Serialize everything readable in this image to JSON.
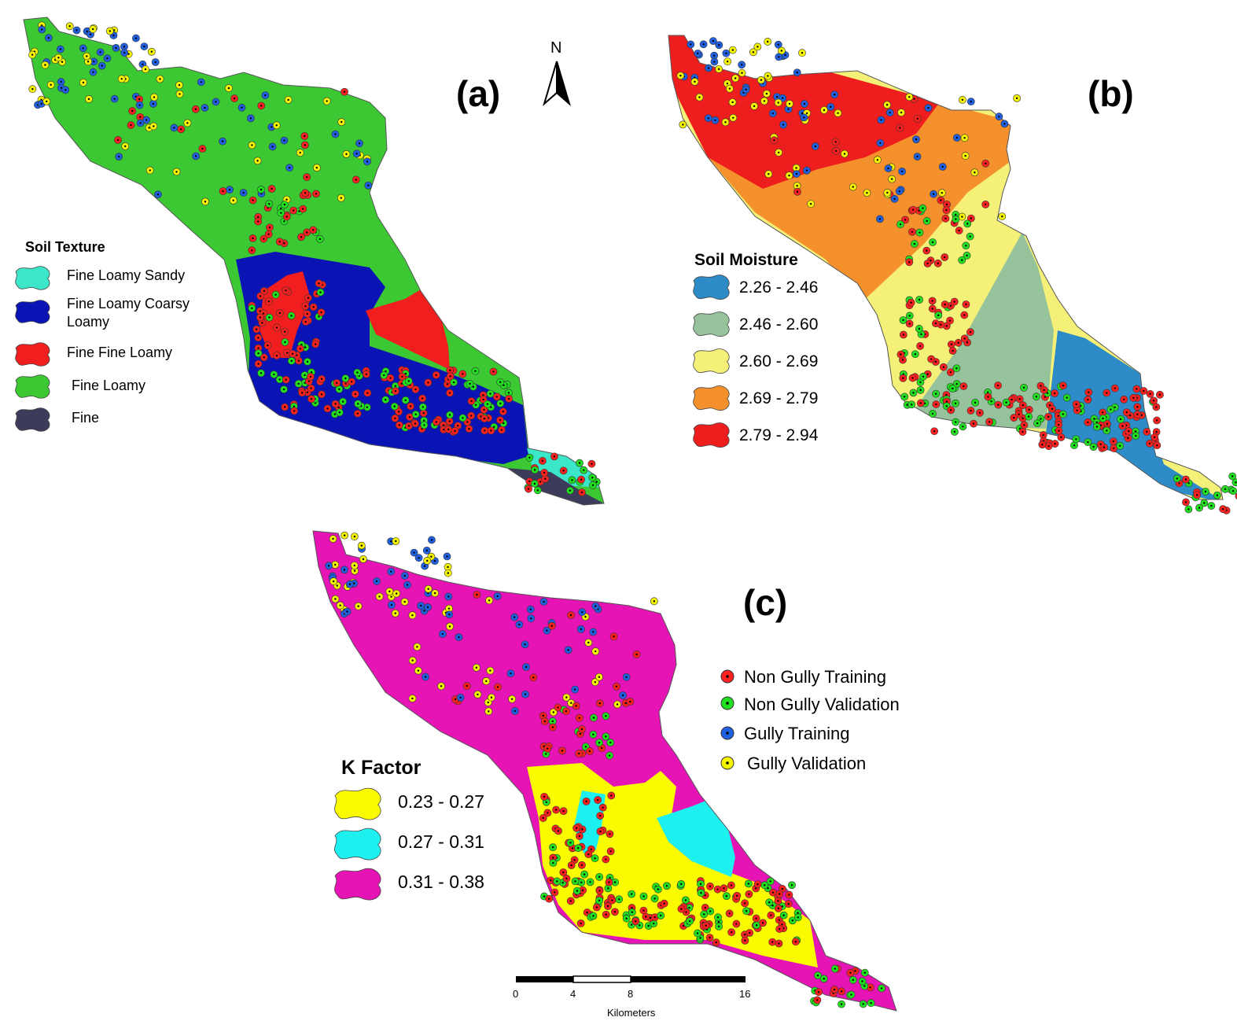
{
  "panels": [
    {
      "id": "a",
      "label": "(a)"
    },
    {
      "id": "b",
      "label": "(b)"
    },
    {
      "id": "c",
      "label": "(c)"
    }
  ],
  "north_arrow": {
    "letter": "N",
    "icon": "north-arrow-icon"
  },
  "soil_texture_legend": {
    "title": "Soil Texture",
    "items": [
      {
        "label": "Fine Loamy Sandy",
        "color": "#3ce6c8"
      },
      {
        "label": "Fine Loamy Coarsy Loamy",
        "line1": "Fine Loamy Coarsy",
        "line2": "Loamy",
        "color": "#0a14b4"
      },
      {
        "label": "Fine Fine Loamy",
        "color": "#f01e1e"
      },
      {
        "label": "Fine Loamy",
        "color": "#3cc832"
      },
      {
        "label": "Fine",
        "color": "#3c3c5a"
      }
    ]
  },
  "soil_moisture_legend": {
    "title": "Soil Moisture",
    "items": [
      {
        "label": "2.26 - 2.46",
        "color": "#2d8cc8"
      },
      {
        "label": "2.46 - 2.60",
        "color": "#96c39b"
      },
      {
        "label": "2.60 - 2.69",
        "color": "#f5f078"
      },
      {
        "label": "2.69 - 2.79",
        "color": "#f5912d"
      },
      {
        "label": "2.79 - 2.94",
        "color": "#ee1e1e"
      }
    ]
  },
  "k_factor_legend": {
    "title": "K Factor",
    "items": [
      {
        "label": "0.23 - 0.27",
        "color": "#fafa00"
      },
      {
        "label": "0.27 - 0.31",
        "color": "#1ef0f0"
      },
      {
        "label": "0.31 - 0.38",
        "color": "#e614b4"
      }
    ]
  },
  "points_legend": {
    "items": [
      {
        "label": "Non Gully Training",
        "color": "#ff2020"
      },
      {
        "label": "Non Gully Validation",
        "color": "#20e020"
      },
      {
        "label": "Gully Training",
        "color": "#2060e0"
      },
      {
        "label": "Gully Validation",
        "color": "#f5f500"
      }
    ]
  },
  "scale_bar": {
    "ticks": [
      "0",
      "4",
      "8",
      "16"
    ],
    "unit": "Kilometers"
  }
}
